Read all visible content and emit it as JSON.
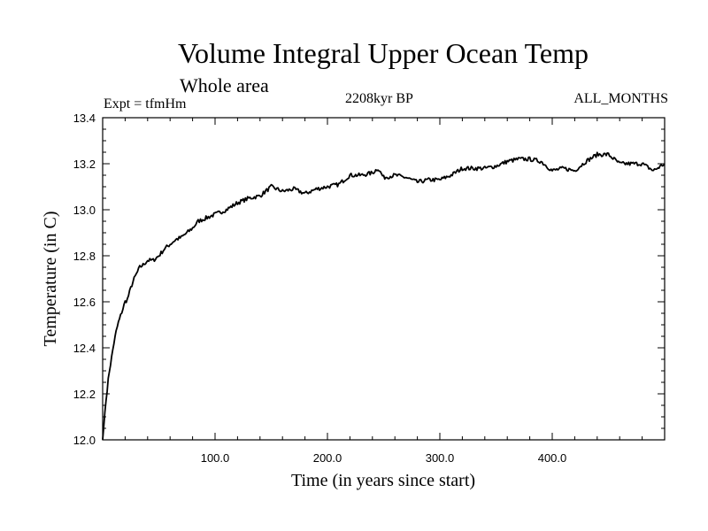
{
  "header": {
    "title": "Volume Integral Upper Ocean Temp",
    "subtitle": "Whole area",
    "experiment": "Expt = tfmHm",
    "period": "2208kyr BP",
    "months": "ALL_MONTHS"
  },
  "chart_data": {
    "type": "line",
    "title": "Volume Integral Upper Ocean Temp",
    "xlabel": "Time (in years since start)",
    "ylabel": "Temperature (in C)",
    "xlim": [
      0,
      500
    ],
    "ylim": [
      12.0,
      13.4
    ],
    "xticks": [
      100,
      200,
      300,
      400
    ],
    "xtick_labels": [
      "100.0",
      "200.0",
      "300.0",
      "400.0"
    ],
    "yticks": [
      12.0,
      12.2,
      12.4,
      12.6,
      12.8,
      13.0,
      13.2,
      13.4
    ],
    "ytick_labels": [
      "12.0",
      "12.2",
      "12.4",
      "12.6",
      "12.8",
      "13.0",
      "13.2",
      "13.4"
    ],
    "series": [
      {
        "name": "Volume integral upper ocean temperature",
        "color": "#000000",
        "x": [
          0,
          2,
          4,
          6,
          8,
          10,
          12,
          14,
          16,
          18,
          20,
          22,
          25,
          28,
          30,
          33,
          36,
          40,
          45,
          50,
          55,
          60,
          65,
          70,
          75,
          80,
          85,
          90,
          95,
          100,
          110,
          120,
          130,
          140,
          150,
          160,
          170,
          180,
          190,
          200,
          210,
          220,
          230,
          240,
          245,
          250,
          260,
          270,
          280,
          290,
          300,
          310,
          320,
          330,
          340,
          350,
          360,
          370,
          380,
          390,
          400,
          410,
          420,
          430,
          440,
          450,
          460,
          470,
          480,
          490,
          500
        ],
        "y": [
          12.0,
          12.12,
          12.22,
          12.3,
          12.36,
          12.42,
          12.47,
          12.51,
          12.54,
          12.57,
          12.6,
          12.61,
          12.66,
          12.7,
          12.72,
          12.75,
          12.76,
          12.78,
          12.78,
          12.8,
          12.83,
          12.85,
          12.87,
          12.88,
          12.9,
          12.92,
          12.95,
          12.96,
          12.97,
          12.98,
          13.0,
          13.03,
          13.05,
          13.06,
          13.1,
          13.08,
          13.09,
          13.07,
          13.09,
          13.1,
          13.11,
          13.15,
          13.15,
          13.16,
          13.18,
          13.14,
          13.15,
          13.14,
          13.12,
          13.13,
          13.13,
          13.15,
          13.18,
          13.18,
          13.18,
          13.19,
          13.21,
          13.22,
          13.22,
          13.21,
          13.17,
          13.18,
          13.17,
          13.21,
          13.24,
          13.24,
          13.2,
          13.2,
          13.2,
          13.17,
          13.2
        ]
      }
    ]
  }
}
